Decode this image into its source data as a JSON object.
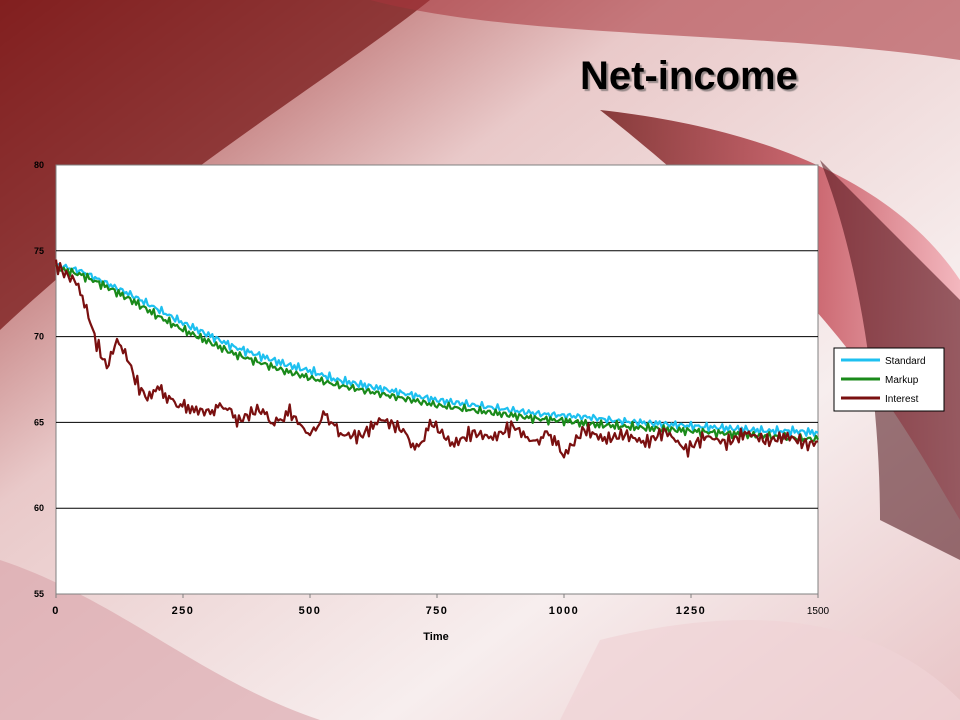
{
  "slide": {
    "title": "Net-income"
  },
  "chart_data": {
    "type": "line",
    "title": "",
    "xlabel": "Time",
    "ylabel": "",
    "xlim": [
      0,
      1500
    ],
    "ylim": [
      55,
      80
    ],
    "xticks": [
      "0",
      "250",
      "500",
      "750",
      "1000",
      "1250",
      "1500"
    ],
    "yticks": [
      "55",
      "60",
      "65",
      "70",
      "75",
      "80"
    ],
    "grid": "horizontal",
    "legend": "right",
    "series": [
      {
        "name": "Standard",
        "color": "#1EC0F0",
        "x": [
          0,
          50,
          100,
          150,
          200,
          250,
          300,
          350,
          400,
          450,
          500,
          550,
          600,
          650,
          700,
          750,
          800,
          850,
          900,
          950,
          1000,
          1050,
          1100,
          1150,
          1200,
          1250,
          1300,
          1350,
          1400,
          1450,
          1500
        ],
        "y": [
          74.2,
          73.8,
          73.1,
          72.4,
          71.6,
          70.8,
          70.1,
          69.4,
          68.9,
          68.4,
          68.0,
          67.5,
          67.2,
          66.9,
          66.6,
          66.3,
          66.1,
          65.9,
          65.7,
          65.5,
          65.4,
          65.3,
          65.1,
          65.0,
          64.9,
          64.8,
          64.7,
          64.6,
          64.5,
          64.5,
          64.4
        ]
      },
      {
        "name": "Markup",
        "color": "#1A8A1A",
        "x": [
          0,
          50,
          100,
          150,
          200,
          250,
          300,
          350,
          400,
          450,
          500,
          550,
          600,
          650,
          700,
          750,
          800,
          850,
          900,
          950,
          1000,
          1050,
          1100,
          1150,
          1200,
          1250,
          1300,
          1350,
          1400,
          1450,
          1500
        ],
        "y": [
          74.0,
          73.6,
          72.9,
          72.1,
          71.2,
          70.4,
          69.7,
          69.0,
          68.5,
          68.0,
          67.6,
          67.2,
          66.9,
          66.6,
          66.3,
          66.0,
          65.8,
          65.6,
          65.4,
          65.2,
          65.1,
          64.9,
          64.8,
          64.7,
          64.6,
          64.5,
          64.4,
          64.3,
          64.2,
          64.1,
          64.0
        ]
      },
      {
        "name": "Interest",
        "color": "#7A1010",
        "x": [
          0,
          20,
          40,
          60,
          80,
          100,
          120,
          140,
          160,
          180,
          200,
          230,
          260,
          300,
          330,
          360,
          400,
          430,
          460,
          500,
          530,
          560,
          600,
          640,
          680,
          710,
          740,
          780,
          820,
          860,
          900,
          940,
          970,
          1000,
          1040,
          1080,
          1120,
          1160,
          1200,
          1240,
          1280,
          1320,
          1360,
          1400,
          1440,
          1480,
          1500
        ],
        "y": [
          74.2,
          73.6,
          73.2,
          71.6,
          69.6,
          68.2,
          69.8,
          68.8,
          67.2,
          66.4,
          67.0,
          66.2,
          65.8,
          65.6,
          66.0,
          65.1,
          65.8,
          64.9,
          65.6,
          64.2,
          65.5,
          64.3,
          64.2,
          65.2,
          64.6,
          63.4,
          65.0,
          63.7,
          64.4,
          64.1,
          64.8,
          63.8,
          64.4,
          63.1,
          64.6,
          64.0,
          64.3,
          63.8,
          64.5,
          63.4,
          64.2,
          63.8,
          64.4,
          63.9,
          64.2,
          63.7,
          63.9
        ]
      }
    ]
  }
}
